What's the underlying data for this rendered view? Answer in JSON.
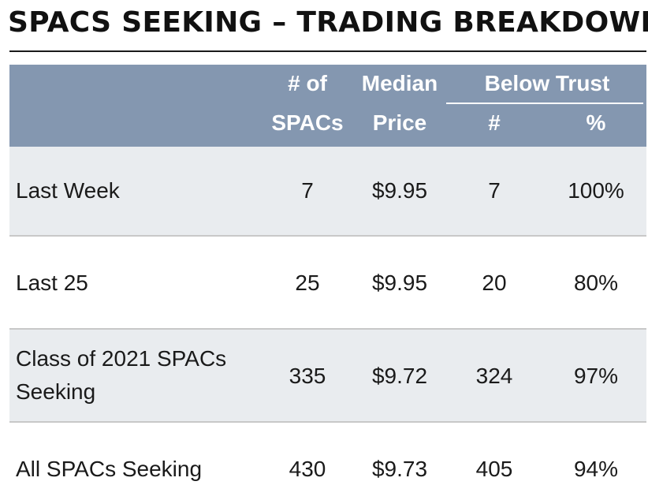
{
  "title": "SPACS SEEKING – TRADING BREAKDOWN",
  "chart_data": {
    "type": "table",
    "title": "SPACS SEEKING – TRADING BREAKDOWN",
    "header": {
      "spacs_line1": "# of",
      "spacs_line2": "SPACs",
      "price_line1": "Median",
      "price_line2": "Price",
      "group": "Below Trust",
      "below_count": "#",
      "below_pct": "%"
    },
    "rows": [
      {
        "label": "Last Week",
        "spacs": "7",
        "median_price": "$9.95",
        "below_count": "7",
        "below_pct": "100%"
      },
      {
        "label": "Last 25",
        "spacs": "25",
        "median_price": "$9.95",
        "below_count": "20",
        "below_pct": "80%"
      },
      {
        "label": "Class of 2021 SPACs Seeking",
        "spacs": "335",
        "median_price": "$9.72",
        "below_count": "324",
        "below_pct": "97%"
      },
      {
        "label": "All SPACs Seeking",
        "spacs": "430",
        "median_price": "$9.73",
        "below_count": "405",
        "below_pct": "94%"
      }
    ]
  },
  "colors": {
    "header_bg": "#8497b0",
    "row_shade": "#e9ecef",
    "header_text": "#ffffff"
  }
}
